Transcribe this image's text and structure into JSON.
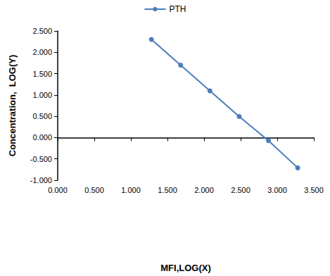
{
  "chart_data": {
    "type": "line",
    "x_label": "MFI,LOG(X)",
    "y_label": "Concentration,  LOG(Y)",
    "series": [
      {
        "name": "PTH",
        "color": "#4a7ebb",
        "marker": "circle",
        "line_style": "solid",
        "x": [
          1.28,
          1.68,
          2.08,
          2.48,
          2.88,
          3.28
        ],
        "values": [
          2.301,
          1.699,
          1.097,
          0.495,
          -0.07,
          -0.709
        ]
      }
    ],
    "xlim": [
      0,
      3.5
    ],
    "xticks": [
      {
        "value": 0,
        "label": "0.000"
      },
      {
        "value": 0.5,
        "label": "0.500"
      },
      {
        "value": 1,
        "label": "1.000"
      },
      {
        "value": 1.5,
        "label": "1.500"
      },
      {
        "value": 2,
        "label": "2.000"
      },
      {
        "value": 2.5,
        "label": "2.500"
      },
      {
        "value": 3,
        "label": "3.000"
      },
      {
        "value": 3.5,
        "label": "3.500"
      }
    ],
    "ylim": [
      -1,
      2.5
    ],
    "yticks": [
      {
        "value": -1,
        "label": "-1.000"
      },
      {
        "value": -0.5,
        "label": "-0.500"
      },
      {
        "value": 0,
        "label": "0.000"
      },
      {
        "value": 0.5,
        "label": "0.500"
      },
      {
        "value": 1,
        "label": "1.000"
      },
      {
        "value": 1.5,
        "label": "1.500"
      },
      {
        "value": 2,
        "label": "2.000"
      },
      {
        "value": 2.5,
        "label": "2.500"
      }
    ],
    "grid": false,
    "legend": "top"
  }
}
